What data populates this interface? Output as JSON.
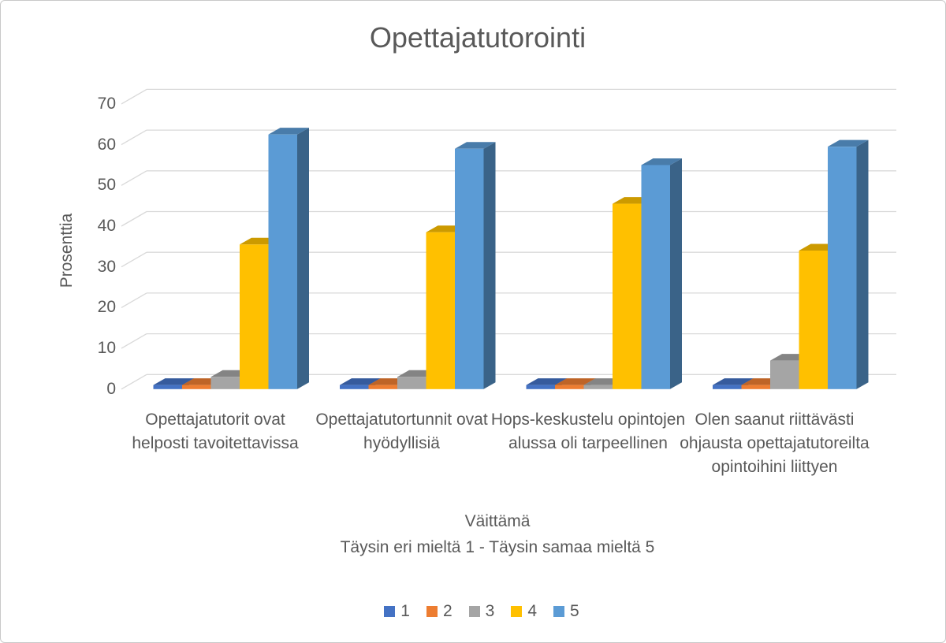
{
  "chart_data": {
    "type": "bar",
    "variant": "3d-clustered-column",
    "title": "Opettajatutorointi",
    "ylabel": "Prosenttia",
    "xlabel": "Väittämä",
    "xlabel_note": "Täysin eri mieltä 1 - Täysin samaa mieltä 5",
    "ylim": [
      0,
      70
    ],
    "yticks": [
      0,
      10,
      20,
      30,
      40,
      50,
      60,
      70
    ],
    "grid": true,
    "legend_position": "bottom",
    "categories": [
      "Opettajatutorit ovat helposti tavoitettavissa",
      "Opettajatutortunnit ovat hyödyllisiä",
      "Hops-keskustelu opintojen alussa oli tarpeellinen",
      "Olen saanut riittävästi ohjausta opettajatutoreilta opintoihini liittyen"
    ],
    "series": [
      {
        "name": "1",
        "color": "#4472C4",
        "values": [
          1,
          1,
          1,
          1
        ]
      },
      {
        "name": "2",
        "color": "#ED7D31",
        "values": [
          1,
          1,
          1,
          1
        ]
      },
      {
        "name": "3",
        "color": "#A5A5A5",
        "values": [
          3,
          3,
          1,
          7
        ]
      },
      {
        "name": "4",
        "color": "#FFC000",
        "values": [
          35.5,
          38.5,
          45.5,
          34
        ]
      },
      {
        "name": "5",
        "color": "#5B9BD5",
        "values": [
          62.5,
          59,
          55,
          59.5
        ]
      }
    ],
    "gridline_color": "#D9D9D9",
    "text_color": "#595959"
  }
}
